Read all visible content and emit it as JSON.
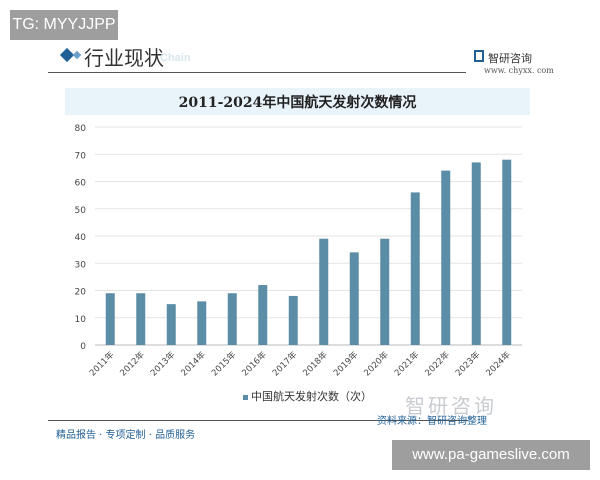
{
  "overlay_top": "TG: MYYJJPP",
  "overlay_bottom": "www.pa-gameslive.com",
  "header": {
    "title": "行业现状",
    "subtitle": "Chain",
    "brand": "智研咨询",
    "url": "www. chyxx. com"
  },
  "footer": {
    "left": "精品报告 · 专项定制 · 品质服务",
    "source": "资料来源：智研咨询整理",
    "watermark": "智研咨询"
  },
  "colors": {
    "bar": "#5b8ea6",
    "accent": "#1f5f95"
  },
  "chart_data": {
    "type": "bar",
    "title": "2011-2024年中国航天发射次数情况",
    "categories": [
      "2011年",
      "2012年",
      "2013年",
      "2014年",
      "2015年",
      "2016年",
      "2017年",
      "2018年",
      "2019年",
      "2020年",
      "2021年",
      "2022年",
      "2023年",
      "2024年"
    ],
    "series": [
      {
        "name": "中国航天发射次数（次）",
        "values": [
          19,
          19,
          15,
          16,
          19,
          22,
          18,
          39,
          34,
          39,
          56,
          64,
          67,
          68
        ]
      }
    ],
    "ylim": [
      0,
      80
    ],
    "yticks": [
      0,
      10,
      20,
      30,
      40,
      50,
      60,
      70,
      80
    ],
    "grid": true,
    "legend": "bottom"
  }
}
